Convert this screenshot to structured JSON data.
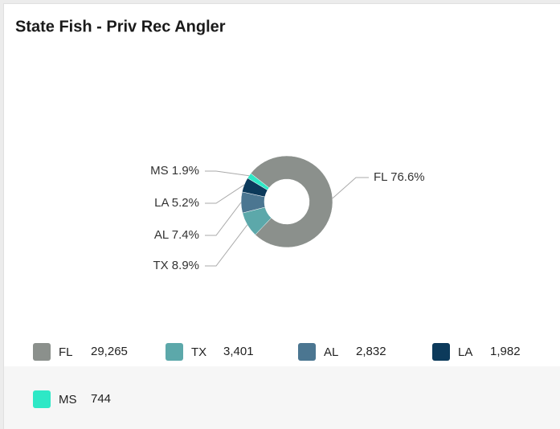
{
  "chart_data": {
    "type": "pie",
    "donut": true,
    "title": "State Fish - Priv Rec Angler",
    "categories": [
      "FL",
      "TX",
      "AL",
      "LA",
      "MS"
    ],
    "values": [
      29265,
      3401,
      2832,
      1982,
      744
    ],
    "value_labels": [
      "29,265",
      "3,401",
      "2,832",
      "1,982",
      "744"
    ],
    "slice_labels": [
      "FL 76.6%",
      "TX 8.9%",
      "AL 7.4%",
      "LA 5.2%",
      "MS 1.9%"
    ],
    "colors": [
      "#8b908c",
      "#5ca8aa",
      "#4b7691",
      "#0c3a5b",
      "#2ee8c6"
    ]
  }
}
